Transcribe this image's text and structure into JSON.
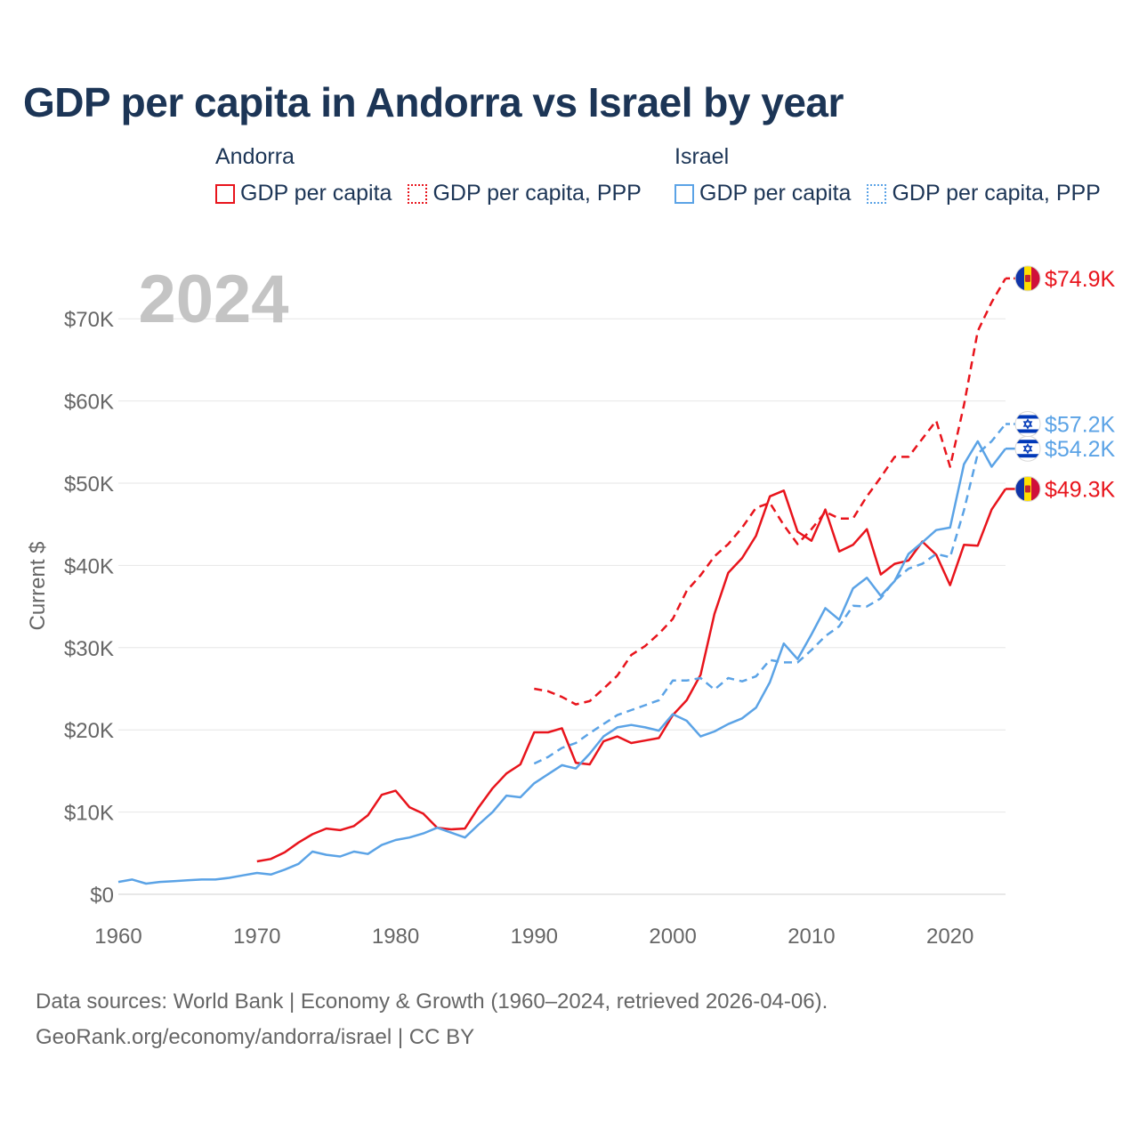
{
  "title": "GDP per capita in Andorra vs Israel by year",
  "legend": {
    "groups": [
      {
        "name": "Andorra",
        "items": [
          {
            "label": "GDP per capita",
            "style": "solid"
          },
          {
            "label": "GDP per capita, PPP",
            "style": "dotted"
          }
        ],
        "color": "#e8141c"
      },
      {
        "name": "Israel",
        "items": [
          {
            "label": "GDP per capita",
            "style": "solid"
          },
          {
            "label": "GDP per capita, PPP",
            "style": "dotted"
          }
        ],
        "color": "#5ba3e6"
      }
    ]
  },
  "year_label": "2024",
  "footer": {
    "line1": "Data sources: World Bank | Economy & Growth (1960–2024, retrieved 2026-04-06).",
    "line2": "GeoRank.org/economy/andorra/israel | CC BY"
  },
  "colors": {
    "andorra": "#e8141c",
    "israel": "#5ba3e6",
    "grid": "#e6e6e6",
    "axis_text": "#666666",
    "watermark": "#c4c4c4"
  },
  "chart_data": {
    "type": "line",
    "title": "GDP per capita in Andorra vs Israel by year",
    "xlabel": "",
    "ylabel": "Current $",
    "xlim": [
      1960,
      2024
    ],
    "ylim": [
      0,
      75000
    ],
    "x_ticks": [
      1960,
      1970,
      1980,
      1990,
      2000,
      2010,
      2020
    ],
    "x_tick_labels": [
      "1960",
      "1970",
      "1980",
      "1990",
      "2000",
      "2010",
      "2020"
    ],
    "y_ticks": [
      0,
      10000,
      20000,
      30000,
      40000,
      50000,
      60000,
      70000
    ],
    "y_tick_labels": [
      "$0",
      "$10K",
      "$20K",
      "$30K",
      "$40K",
      "$50K",
      "$60K",
      "$70K"
    ],
    "grid": true,
    "series": [
      {
        "name": "Andorra GDP per capita",
        "country": "andorra",
        "style": "solid",
        "end_label": "$49.3K",
        "x": [
          1970,
          1971,
          1972,
          1973,
          1974,
          1975,
          1976,
          1977,
          1978,
          1979,
          1980,
          1981,
          1982,
          1983,
          1984,
          1985,
          1986,
          1987,
          1988,
          1989,
          1990,
          1991,
          1992,
          1993,
          1994,
          1995,
          1996,
          1997,
          1998,
          1999,
          2000,
          2001,
          2002,
          2003,
          2004,
          2005,
          2006,
          2007,
          2008,
          2009,
          2010,
          2011,
          2012,
          2013,
          2014,
          2015,
          2016,
          2017,
          2018,
          2019,
          2020,
          2021,
          2022,
          2023,
          2024
        ],
        "values": [
          4000,
          4300,
          5100,
          6300,
          7300,
          8000,
          7800,
          8300,
          9600,
          12100,
          12600,
          10600,
          9800,
          8100,
          7900,
          8000,
          10600,
          12900,
          14700,
          15800,
          19700,
          19700,
          20200,
          16000,
          15800,
          18600,
          19200,
          18400,
          18700,
          19000,
          21800,
          23600,
          26700,
          34100,
          39100,
          40900,
          43600,
          48400,
          49100,
          44100,
          43000,
          46800,
          41700,
          42500,
          44400,
          38900,
          40200,
          40600,
          42900,
          41300,
          37600,
          42500,
          42400,
          46800,
          49300
        ]
      },
      {
        "name": "Andorra GDP per capita, PPP",
        "country": "andorra",
        "style": "dashed",
        "end_label": "$74.9K",
        "x": [
          1990,
          1991,
          1992,
          1993,
          1994,
          1995,
          1996,
          1997,
          1998,
          1999,
          2000,
          2001,
          2002,
          2003,
          2004,
          2005,
          2006,
          2007,
          2008,
          2009,
          2010,
          2011,
          2012,
          2013,
          2014,
          2015,
          2016,
          2017,
          2018,
          2019,
          2020,
          2021,
          2022,
          2023,
          2024
        ],
        "values": [
          25000,
          24700,
          24000,
          23100,
          23500,
          25000,
          26600,
          29100,
          30200,
          31700,
          33500,
          36900,
          38800,
          41100,
          42600,
          44600,
          47000,
          47600,
          44900,
          42600,
          44400,
          46500,
          45700,
          45700,
          48400,
          50700,
          53200,
          53200,
          55400,
          57600,
          52000,
          59500,
          68500,
          72000,
          74900
        ]
      },
      {
        "name": "Israel GDP per capita",
        "country": "israel",
        "style": "solid",
        "end_label": "$54.2K",
        "x": [
          1960,
          1961,
          1962,
          1963,
          1964,
          1965,
          1966,
          1967,
          1968,
          1969,
          1970,
          1971,
          1972,
          1973,
          1974,
          1975,
          1976,
          1977,
          1978,
          1979,
          1980,
          1981,
          1982,
          1983,
          1984,
          1985,
          1986,
          1987,
          1988,
          1989,
          1990,
          1991,
          1992,
          1993,
          1994,
          1995,
          1996,
          1997,
          1998,
          1999,
          2000,
          2001,
          2002,
          2003,
          2004,
          2005,
          2006,
          2007,
          2008,
          2009,
          2010,
          2011,
          2012,
          2013,
          2014,
          2015,
          2016,
          2017,
          2018,
          2019,
          2020,
          2021,
          2022,
          2023,
          2024
        ],
        "values": [
          1500,
          1800,
          1300,
          1500,
          1600,
          1700,
          1800,
          1800,
          2000,
          2300,
          2600,
          2400,
          3000,
          3700,
          5200,
          4800,
          4600,
          5200,
          4900,
          6000,
          6600,
          6900,
          7400,
          8100,
          7500,
          6900,
          8500,
          10000,
          12000,
          11800,
          13500,
          14600,
          15700,
          15300,
          17100,
          19200,
          20300,
          20600,
          20300,
          19900,
          21900,
          21100,
          19200,
          19800,
          20700,
          21400,
          22700,
          25800,
          30500,
          28600,
          31600,
          34800,
          33400,
          37200,
          38500,
          36300,
          38100,
          41400,
          42800,
          44300,
          44600,
          52300,
          55100,
          52000,
          54200
        ]
      },
      {
        "name": "Israel GDP per capita, PPP",
        "country": "israel",
        "style": "dashed",
        "end_label": "$57.2K",
        "x": [
          1990,
          1991,
          1992,
          1993,
          1994,
          1995,
          1996,
          1997,
          1998,
          1999,
          2000,
          2001,
          2002,
          2003,
          2004,
          2005,
          2006,
          2007,
          2008,
          2009,
          2010,
          2011,
          2012,
          2013,
          2014,
          2015,
          2016,
          2017,
          2018,
          2019,
          2020,
          2021,
          2022,
          2023,
          2024
        ],
        "values": [
          15900,
          16700,
          17800,
          18400,
          19600,
          20700,
          21800,
          22400,
          23000,
          23600,
          26000,
          26000,
          26300,
          24900,
          26300,
          25900,
          26500,
          28500,
          28200,
          28200,
          29700,
          31400,
          32600,
          35100,
          35000,
          36000,
          38200,
          39600,
          40200,
          41400,
          41000,
          46700,
          53600,
          55100,
          57200
        ]
      }
    ]
  }
}
